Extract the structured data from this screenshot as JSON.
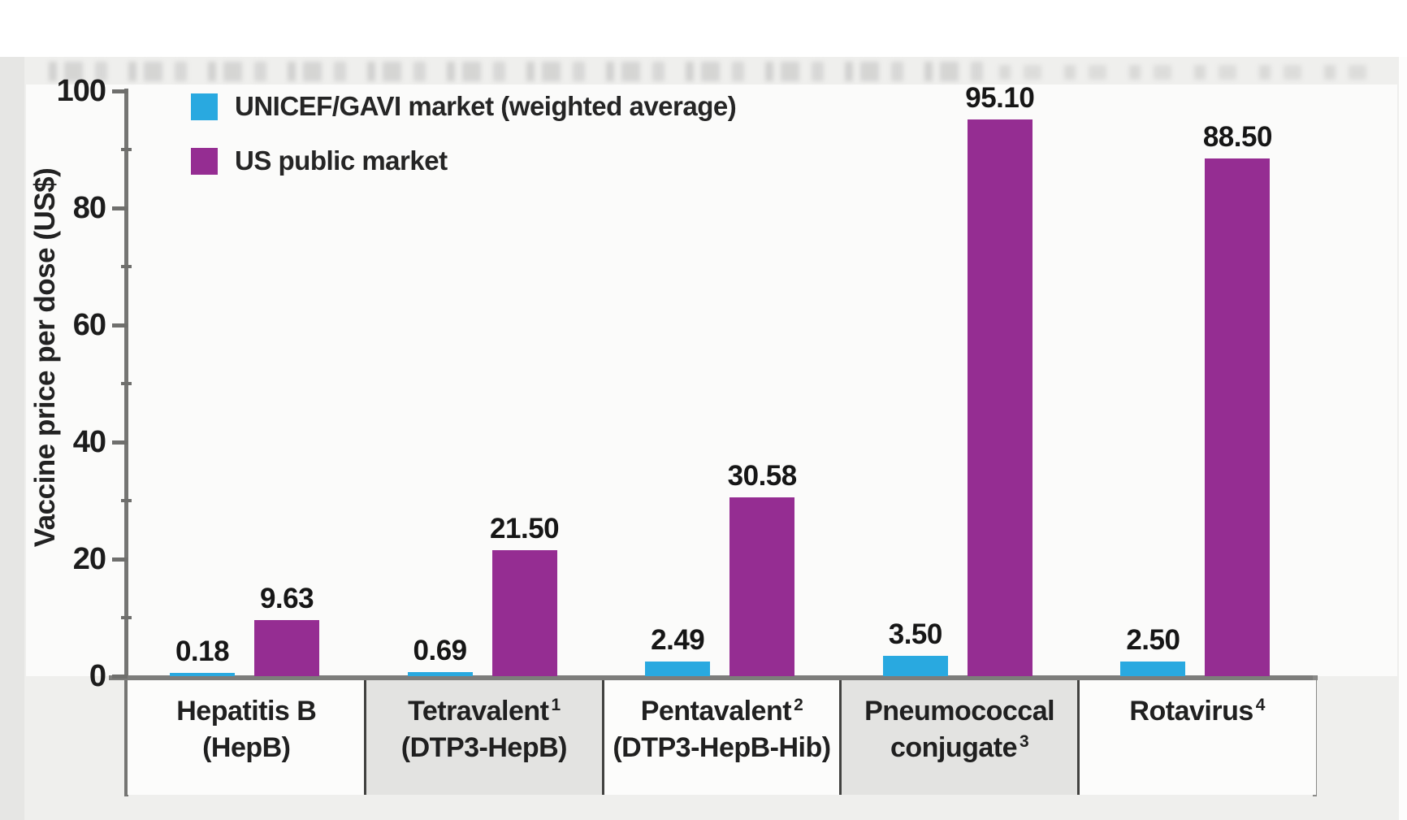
{
  "chart_data": {
    "type": "bar",
    "title": "",
    "xlabel": "",
    "ylabel": "Vaccine price per dose (US$)",
    "ylim": [
      0,
      100
    ],
    "yticks_major": [
      0,
      20,
      40,
      60,
      80,
      100
    ],
    "y_tick_labels": [
      "0",
      "20",
      "40",
      "60",
      "80",
      "100"
    ],
    "yticks_minor": [
      10,
      30,
      50,
      70,
      90
    ],
    "grid": false,
    "legend_position": "top-left inside plot",
    "categories": [
      {
        "lines": [
          {
            "text": "Hepatitis B",
            "sup": ""
          },
          {
            "text": "(HepB)",
            "sup": ""
          }
        ],
        "shaded": false
      },
      {
        "lines": [
          {
            "text": "Tetravalent",
            "sup": "1"
          },
          {
            "text": "(DTP3-HepB)",
            "sup": ""
          }
        ],
        "shaded": true
      },
      {
        "lines": [
          {
            "text": "Pentavalent",
            "sup": "2"
          },
          {
            "text": "(DTP3-HepB-Hib)",
            "sup": ""
          }
        ],
        "shaded": false
      },
      {
        "lines": [
          {
            "text": "Pneumococcal",
            "sup": ""
          },
          {
            "text": "conjugate",
            "sup": "3"
          }
        ],
        "shaded": true
      },
      {
        "lines": [
          {
            "text": "Rotavirus",
            "sup": "4"
          }
        ],
        "shaded": false
      }
    ],
    "series": [
      {
        "name": "UNICEF/GAVI market (weighted average)",
        "color": "#29a9e0",
        "values": [
          0.18,
          0.69,
          2.49,
          3.5,
          2.5
        ],
        "value_labels": [
          "0.18",
          "0.69",
          "2.49",
          "3.50",
          "2.50"
        ]
      },
      {
        "name": "US public market",
        "color": "#952d92",
        "values": [
          9.63,
          21.5,
          30.58,
          95.1,
          88.5
        ],
        "value_labels": [
          "9.63",
          "21.50",
          "30.58",
          "95.10",
          "88.50"
        ]
      }
    ]
  },
  "colors": {
    "unicef_blue": "#29a9e0",
    "us_purple": "#952d92",
    "axis_gray": "#757573",
    "divider_dark": "#424240",
    "shaded_cell": "#e3e3e1",
    "plain_cell": "#fcfcfb",
    "panel_bg": "#efefed",
    "text": "#1e1e1e"
  }
}
